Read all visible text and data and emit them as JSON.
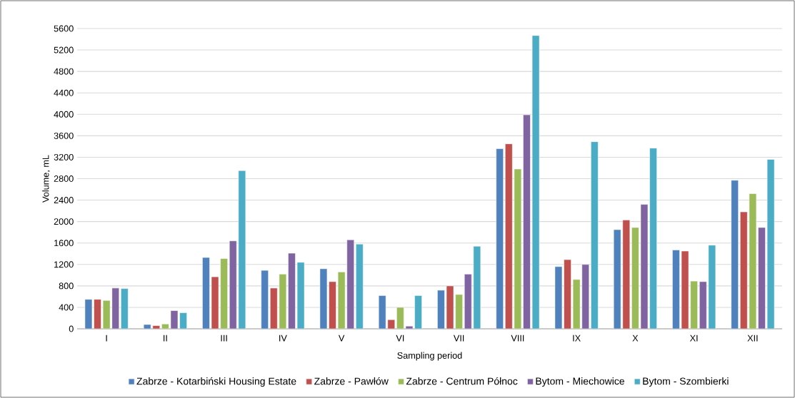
{
  "chart_data": {
    "type": "bar",
    "xlabel": "Sampling period",
    "ylabel": "Volume, mL",
    "categories": [
      "I",
      "II",
      "III",
      "IV",
      "V",
      "VI",
      "VII",
      "VIII",
      "IX",
      "X",
      "XI",
      "XII"
    ],
    "series": [
      {
        "name": "Zabrze - Kotarbiński Housing Estate",
        "color": "#4f81bd",
        "values": [
          550,
          80,
          1330,
          1090,
          1120,
          620,
          720,
          3360,
          1160,
          1850,
          1470,
          2770
        ]
      },
      {
        "name": "Zabrze - Pawłów",
        "color": "#c0504d",
        "values": [
          550,
          60,
          970,
          760,
          880,
          170,
          800,
          3450,
          1290,
          2030,
          1450,
          2180
        ]
      },
      {
        "name": "Zabrze - Centrum Północ",
        "color": "#9bbb59",
        "values": [
          530,
          90,
          1310,
          1020,
          1060,
          400,
          640,
          2980,
          920,
          1890,
          890,
          2520
        ]
      },
      {
        "name": "Bytom - Miechowice",
        "color": "#8064a2",
        "values": [
          760,
          340,
          1640,
          1410,
          1660,
          50,
          1020,
          3990,
          1200,
          2320,
          880,
          1890
        ]
      },
      {
        "name": "Bytom - Szombierki",
        "color": "#4bacc6",
        "values": [
          750,
          300,
          2950,
          1240,
          1580,
          620,
          1540,
          5470,
          3490,
          3370,
          1560,
          3160
        ]
      }
    ],
    "ylim": [
      0,
      5600
    ],
    "yticks": [
      0,
      400,
      800,
      1200,
      1600,
      2000,
      2400,
      2800,
      3200,
      3600,
      4000,
      4400,
      4800,
      5200,
      5600
    ],
    "grid": "y",
    "legend": "bottom"
  }
}
